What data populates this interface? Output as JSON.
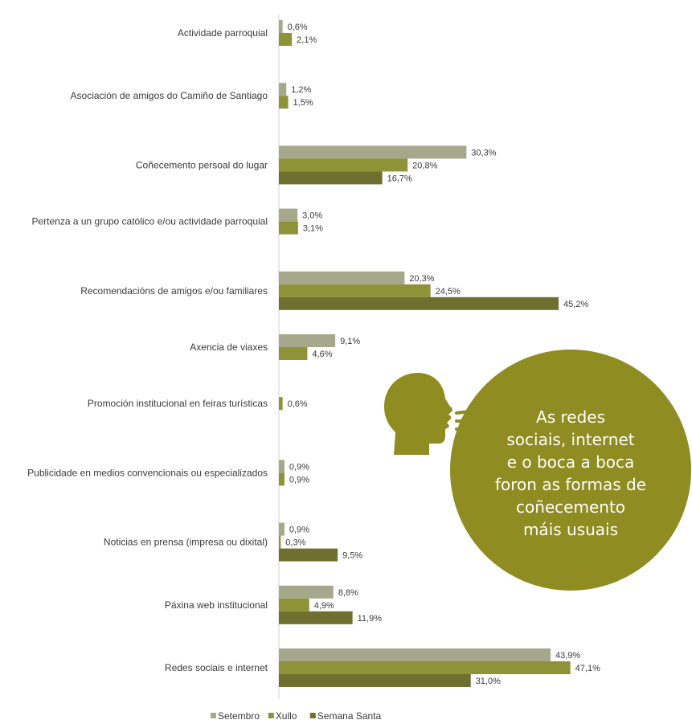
{
  "chart_data": {
    "type": "bar",
    "orientation": "horizontal",
    "categories": [
      "Actividade parroquial",
      "Asociación de amigos do Camiño de Santiago",
      "Coñecemento persoal do lugar",
      "Pertenza a un grupo católico e/ou actividade parroquial",
      "Recomendacións de amigos e/ou familiares",
      "Axencia de viaxes",
      "Promoción institucional en feiras turísticas",
      "Publicidade en medios convencionais ou especializados",
      "Noticias en prensa (impresa ou dixital)",
      "Páxina web institucional",
      "Redes sociais e internet"
    ],
    "series": [
      {
        "name": "Setembro",
        "color": "#a5a88a",
        "values": [
          0.6,
          1.2,
          30.3,
          3.0,
          20.3,
          9.1,
          null,
          0.9,
          0.9,
          8.8,
          43.9
        ],
        "labels": [
          "0,6%",
          "1,2%",
          "30,3%",
          "3,0%",
          "20,3%",
          "9,1%",
          null,
          "0,9%",
          "0,9%",
          "8,8%",
          "43,9%"
        ]
      },
      {
        "name": "Xullo",
        "color": "#8f9337",
        "values": [
          2.1,
          1.5,
          20.8,
          3.1,
          24.5,
          4.6,
          0.6,
          0.9,
          0.3,
          4.9,
          47.1
        ],
        "labels": [
          "2,1%",
          "1,5%",
          "20,8%",
          "3,1%",
          "24,5%",
          "4,6%",
          "0,6%",
          "0,9%",
          "0,3%",
          "4,9%",
          "47,1%"
        ]
      },
      {
        "name": "Semana Santa",
        "color": "#6f7030",
        "values": [
          null,
          null,
          16.7,
          null,
          45.2,
          null,
          null,
          null,
          9.5,
          11.9,
          31.0
        ],
        "labels": [
          null,
          null,
          "16,7%",
          null,
          "45,2%",
          null,
          null,
          null,
          "9,5%",
          "11,9%",
          "31,0%"
        ]
      }
    ],
    "grid": false,
    "legend": "bottom-center"
  },
  "callout": {
    "lines": [
      "As redes",
      "sociais, internet",
      "e o boca a boca",
      "foron as formas de",
      "coñecemento",
      "máis usuais"
    ],
    "color": "#8f8c22",
    "icon": "speaking-head-icon"
  }
}
